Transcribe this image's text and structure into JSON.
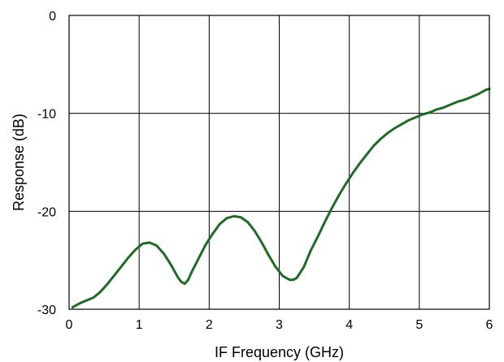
{
  "chart_data": {
    "type": "line",
    "title": "",
    "xlabel": "IF Frequency (GHz)",
    "ylabel": "Response (dB)",
    "xlim": [
      0,
      6
    ],
    "ylim": [
      -30,
      0
    ],
    "xticks": [
      0,
      1,
      2,
      3,
      4,
      5,
      6
    ],
    "yticks": [
      0,
      -10,
      -20,
      -30
    ],
    "xtick_labels": [
      "0",
      "1",
      "2",
      "3",
      "4",
      "5",
      "6"
    ],
    "ytick_labels": [
      "0",
      "-10",
      "-20",
      "-30"
    ],
    "grid": true,
    "legend": "none",
    "series": [
      {
        "color": "#1e6b24",
        "x": [
          0.05,
          0.15,
          0.25,
          0.35,
          0.45,
          0.55,
          0.65,
          0.75,
          0.85,
          0.95,
          1.05,
          1.15,
          1.25,
          1.35,
          1.45,
          1.55,
          1.6,
          1.65,
          1.7,
          1.75,
          1.85,
          1.95,
          2.05,
          2.15,
          2.25,
          2.35,
          2.45,
          2.55,
          2.65,
          2.75,
          2.85,
          2.95,
          3.05,
          3.15,
          3.2,
          3.25,
          3.35,
          3.45,
          3.55,
          3.65,
          3.75,
          3.85,
          3.95,
          4.05,
          4.15,
          4.25,
          4.35,
          4.45,
          4.55,
          4.65,
          4.75,
          4.85,
          4.95,
          5.05,
          5.15,
          5.25,
          5.35,
          5.45,
          5.55,
          5.65,
          5.75,
          5.85,
          5.95,
          6.0
        ],
        "y": [
          -29.8,
          -29.4,
          -29.1,
          -28.8,
          -28.2,
          -27.4,
          -26.5,
          -25.6,
          -24.7,
          -23.9,
          -23.3,
          -23.2,
          -23.5,
          -24.3,
          -25.4,
          -26.7,
          -27.2,
          -27.4,
          -27.0,
          -26.2,
          -24.8,
          -23.4,
          -22.3,
          -21.3,
          -20.7,
          -20.5,
          -20.6,
          -21.1,
          -22.0,
          -23.2,
          -24.5,
          -25.7,
          -26.6,
          -27.0,
          -27.0,
          -26.8,
          -25.7,
          -24.0,
          -22.6,
          -21.1,
          -19.7,
          -18.4,
          -17.2,
          -16.1,
          -15.1,
          -14.2,
          -13.3,
          -12.6,
          -12.0,
          -11.5,
          -11.1,
          -10.7,
          -10.4,
          -10.1,
          -9.9,
          -9.6,
          -9.4,
          -9.1,
          -8.8,
          -8.6,
          -8.3,
          -8.0,
          -7.6,
          -7.5
        ]
      }
    ]
  }
}
